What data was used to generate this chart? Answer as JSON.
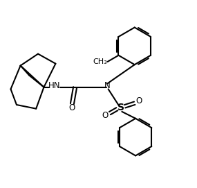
{
  "bg_color": "#ffffff",
  "line_color": "#000000",
  "line_width": 1.5,
  "font_size": 8.5,
  "fig_width": 2.85,
  "fig_height": 2.71,
  "xlim": [
    0,
    10
  ],
  "ylim": [
    0,
    9.5
  ]
}
